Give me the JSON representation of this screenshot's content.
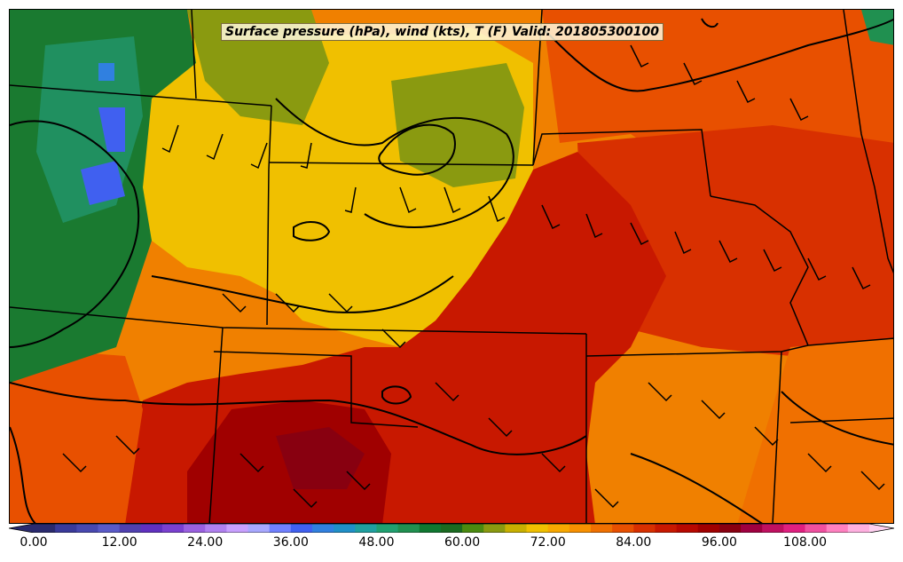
{
  "title": "Surface pressure (hPa), wind (kts), T (F) Valid: 2018053001​00",
  "colorbar": {
    "ticks": [
      "0.00",
      "12.00",
      "24.00",
      "36.00",
      "48.00",
      "60.00",
      "72.00",
      "84.00",
      "96.00",
      "108.00"
    ],
    "extend": "both",
    "colors": [
      "#2a2a6e",
      "#3a3a9a",
      "#4848b0",
      "#5a5ac8",
      "#5040b0",
      "#6030c0",
      "#7a40d0",
      "#9a60e0",
      "#b080f0",
      "#c8a0ff",
      "#a8a8ff",
      "#7080ff",
      "#4060f0",
      "#3080e0",
      "#2090c8",
      "#20a0a0",
      "#20a070",
      "#209050",
      "#107830",
      "#1a6a20",
      "#4a8a10",
      "#8a9a10",
      "#c8b000",
      "#f0c000",
      "#f8a800",
      "#f89000",
      "#f07000",
      "#e85000",
      "#d83000",
      "#c81800",
      "#b80800",
      "#a00000",
      "#880010",
      "#a00040",
      "#c01060",
      "#e02080",
      "#f050a0",
      "#ff80c0",
      "#ffb0e0"
    ]
  },
  "map": {
    "projection": "regional",
    "boundaries": "state lines",
    "contours": "surface pressure isobars",
    "barbs": "wind barbs"
  }
}
